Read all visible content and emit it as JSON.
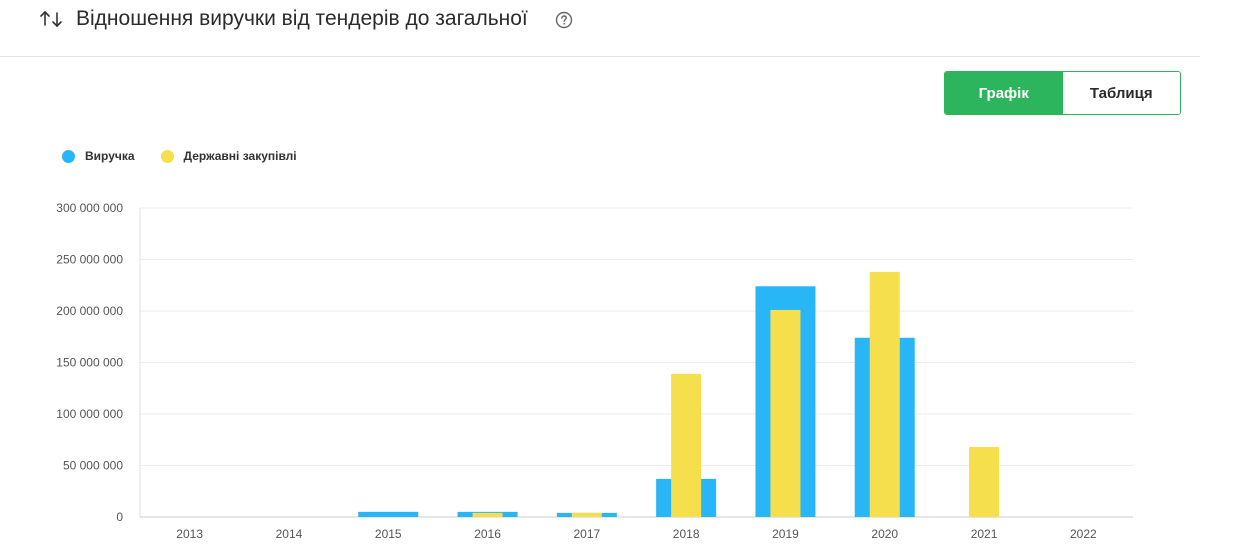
{
  "header": {
    "title": "Відношення виручки від тендерів до загальної"
  },
  "toggle": {
    "chart_label": "Графік",
    "table_label": "Таблиця",
    "active": "chart"
  },
  "colors": {
    "revenue": "#29b6f6",
    "procurement": "#f5df4d",
    "accent": "#2db55d"
  },
  "chart_data": {
    "type": "bar",
    "categories": [
      "2013",
      "2014",
      "2015",
      "2016",
      "2017",
      "2018",
      "2019",
      "2020",
      "2021",
      "2022"
    ],
    "series": [
      {
        "name": "Виручка",
        "values": [
          0,
          0,
          5000000,
          5000000,
          4000000,
          37000000,
          224000000,
          174000000,
          0,
          0
        ]
      },
      {
        "name": "Державні закупівлі",
        "values": [
          0,
          0,
          0,
          4000000,
          4000000,
          139000000,
          201000000,
          238000000,
          68000000,
          0
        ]
      }
    ],
    "ylim": [
      0,
      300000000
    ],
    "yticks": [
      0,
      50000000,
      100000000,
      150000000,
      200000000,
      250000000,
      300000000
    ],
    "ytick_labels": [
      "0",
      "50 000 000",
      "100 000 000",
      "150 000 000",
      "200 000 000",
      "250 000 000",
      "300 000 000"
    ],
    "grid": true,
    "legend": "top-left"
  }
}
